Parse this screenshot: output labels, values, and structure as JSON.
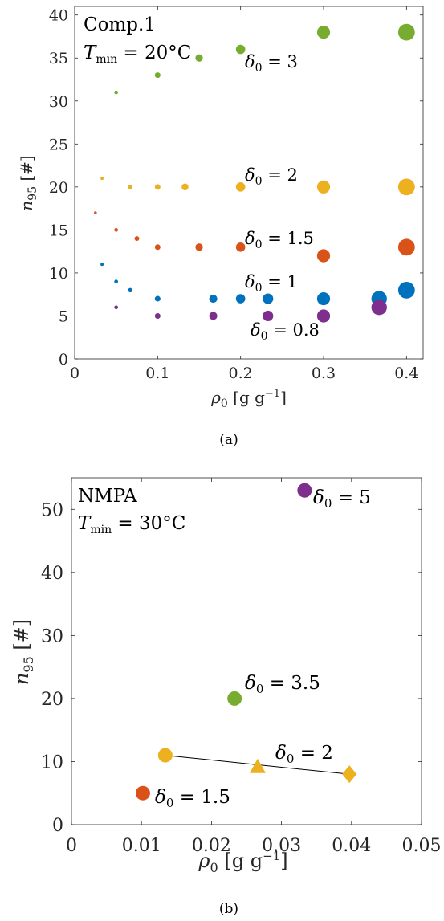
{
  "chart_data": [
    {
      "type": "scatter",
      "caption": "(a)",
      "xlabel": "ρ₀ [g g⁻¹]",
      "ylabel": "n₉₅ [#]",
      "xlim": [
        0,
        0.42
      ],
      "ylim": [
        0,
        41
      ],
      "xticks": [
        "0",
        "0.1",
        "0.2",
        "0.3",
        "0.4"
      ],
      "yticks": [
        "0",
        "5",
        "10",
        "15",
        "20",
        "25",
        "30",
        "35",
        "40"
      ],
      "annotations": [
        "Comp.1",
        "T_min = 20°C"
      ],
      "series": [
        {
          "label": "δ₀ = 3",
          "color": "#77ac30",
          "points": [
            [
              0.05,
              31
            ],
            [
              0.1,
              33
            ],
            [
              0.15,
              35
            ],
            [
              0.2,
              36
            ],
            [
              0.3,
              38
            ],
            [
              0.4,
              38
            ]
          ]
        },
        {
          "label": "δ₀ = 2",
          "color": "#edb120",
          "points": [
            [
              0.033,
              21
            ],
            [
              0.067,
              20
            ],
            [
              0.1,
              20
            ],
            [
              0.133,
              20
            ],
            [
              0.2,
              20
            ],
            [
              0.3,
              20
            ],
            [
              0.4,
              20
            ]
          ]
        },
        {
          "label": "δ₀ = 1.5",
          "color": "#d95319",
          "points": [
            [
              0.025,
              17
            ],
            [
              0.05,
              15
            ],
            [
              0.075,
              14
            ],
            [
              0.1,
              13
            ],
            [
              0.15,
              13
            ],
            [
              0.2,
              13
            ],
            [
              0.3,
              12
            ],
            [
              0.4,
              13
            ]
          ]
        },
        {
          "label": "δ₀ = 1",
          "color": "#0072bd",
          "points": [
            [
              0.033,
              11
            ],
            [
              0.05,
              9
            ],
            [
              0.067,
              8
            ],
            [
              0.1,
              7
            ],
            [
              0.167,
              7
            ],
            [
              0.2,
              7
            ],
            [
              0.233,
              7
            ],
            [
              0.3,
              7
            ],
            [
              0.367,
              7
            ],
            [
              0.4,
              8
            ]
          ]
        },
        {
          "label": "δ₀ = 0.8",
          "color": "#7e2f8e",
          "points": [
            [
              0.05,
              6
            ],
            [
              0.1,
              5
            ],
            [
              0.167,
              5
            ],
            [
              0.233,
              5
            ],
            [
              0.3,
              5
            ],
            [
              0.367,
              6
            ]
          ]
        }
      ]
    },
    {
      "type": "scatter",
      "caption": "(b)",
      "xlabel": "ρ₀ [g g⁻¹]",
      "ylabel": "n₉₅ [#]",
      "xlim": [
        0,
        0.05
      ],
      "ylim": [
        0,
        55
      ],
      "xticks": [
        "0",
        "0.01",
        "0.02",
        "0.03",
        "0.04",
        "0.05"
      ],
      "yticks": [
        "0",
        "10",
        "20",
        "30",
        "40",
        "50"
      ],
      "annotations": [
        "NMPA",
        "T_min = 30°C"
      ],
      "points": [
        {
          "label": "δ₀ = 5",
          "color": "#7e2f8e",
          "marker": "circle",
          "x": 0.0333,
          "y": 53
        },
        {
          "label": "δ₀ = 3.5",
          "color": "#77ac30",
          "marker": "circle",
          "x": 0.0233,
          "y": 20
        },
        {
          "label": "δ₀ = 1.5",
          "color": "#d95319",
          "marker": "circle",
          "x": 0.0102,
          "y": 5
        },
        {
          "label": "δ₀ = 2",
          "color": "#edb120",
          "marker": "circle",
          "x": 0.0134,
          "y": 11
        },
        {
          "label": "",
          "color": "#edb120",
          "marker": "triangle",
          "x": 0.0266,
          "y": 9.2
        },
        {
          "label": "",
          "color": "#edb120",
          "marker": "diamond",
          "x": 0.0397,
          "y": 8
        }
      ],
      "line": {
        "color": "#000000",
        "points": [
          [
            0.0134,
            11
          ],
          [
            0.0397,
            8
          ]
        ]
      }
    }
  ]
}
